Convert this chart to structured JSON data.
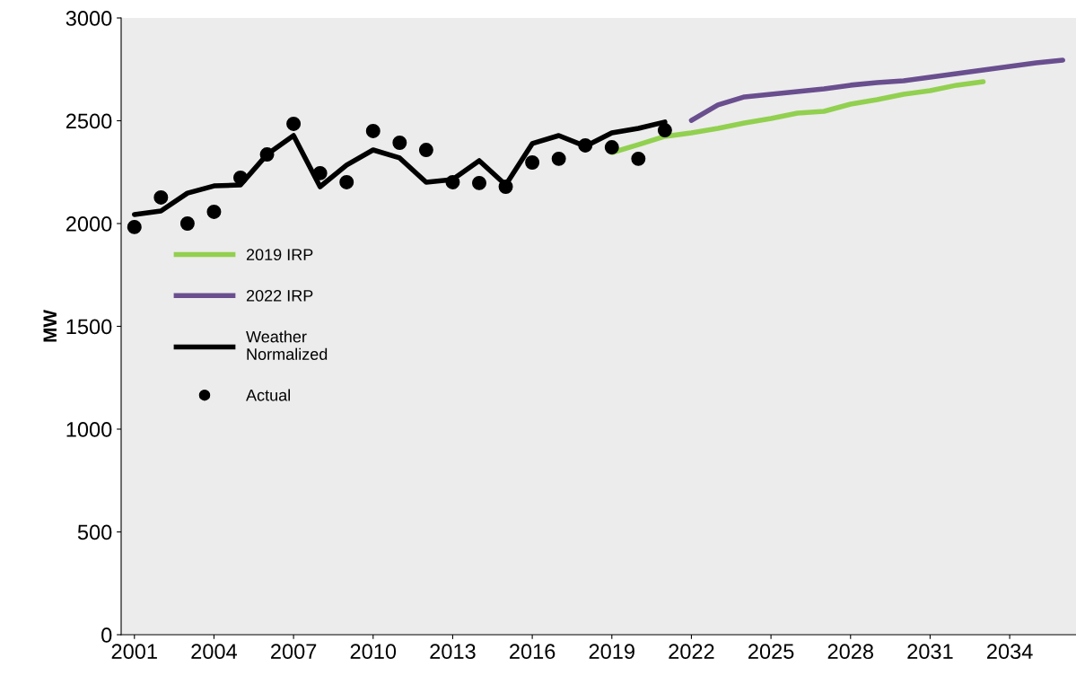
{
  "chart_data": {
    "type": "line",
    "ylabel": "MW",
    "xlim": [
      2000.5,
      2036.5
    ],
    "xticks": [
      2001,
      2004,
      2007,
      2010,
      2013,
      2016,
      2019,
      2022,
      2025,
      2028,
      2031,
      2034
    ],
    "ylim": [
      0,
      3000
    ],
    "yticks": [
      0,
      500,
      1000,
      1500,
      2000,
      2500,
      3000
    ],
    "grid": false,
    "legend": "left",
    "series": [
      {
        "name": "2019 IRP",
        "color": "#92d050",
        "x": [
          2019,
          2020,
          2021,
          2022,
          2023,
          2024,
          2025,
          2026,
          2027,
          2028,
          2029,
          2030,
          2031,
          2032,
          2033
        ],
        "values": [
          2345,
          2384,
          2424,
          2441,
          2463,
          2489,
          2511,
          2537,
          2546,
          2581,
          2603,
          2629,
          2646,
          2673,
          2690
        ]
      },
      {
        "name": "2022 IRP",
        "color": "#6a4f8f",
        "x": [
          2022,
          2023,
          2024,
          2025,
          2026,
          2027,
          2028,
          2029,
          2030,
          2031,
          2032,
          2033,
          2034,
          2035,
          2036
        ],
        "values": [
          2502,
          2577,
          2616,
          2629,
          2642,
          2655,
          2673,
          2686,
          2694,
          2712,
          2729,
          2747,
          2764,
          2782,
          2795
        ]
      },
      {
        "name": "Weather\nNormalized",
        "color": "#000000",
        "x": [
          2001,
          2002,
          2003,
          2004,
          2005,
          2006,
          2007,
          2008,
          2009,
          2010,
          2011,
          2012,
          2013,
          2014,
          2015,
          2016,
          2017,
          2018,
          2019,
          2020,
          2021
        ],
        "values": [
          2044,
          2061,
          2148,
          2183,
          2188,
          2336,
          2428,
          2179,
          2284,
          2358,
          2319,
          2201,
          2214,
          2306,
          2188,
          2389,
          2428,
          2376,
          2441,
          2463,
          2494
        ]
      },
      {
        "name": "Actual",
        "type": "scatter",
        "marker": "circle",
        "color": "#000000",
        "x": [
          2001,
          2002,
          2003,
          2004,
          2005,
          2006,
          2007,
          2008,
          2009,
          2010,
          2011,
          2012,
          2013,
          2014,
          2015,
          2016,
          2017,
          2018,
          2019,
          2020,
          2021
        ],
        "values": [
          1983,
          2127,
          2000,
          2057,
          2223,
          2336,
          2485,
          2245,
          2201,
          2450,
          2393,
          2358,
          2201,
          2197,
          2179,
          2297,
          2315,
          2380,
          2371,
          2315,
          2454
        ]
      }
    ]
  }
}
